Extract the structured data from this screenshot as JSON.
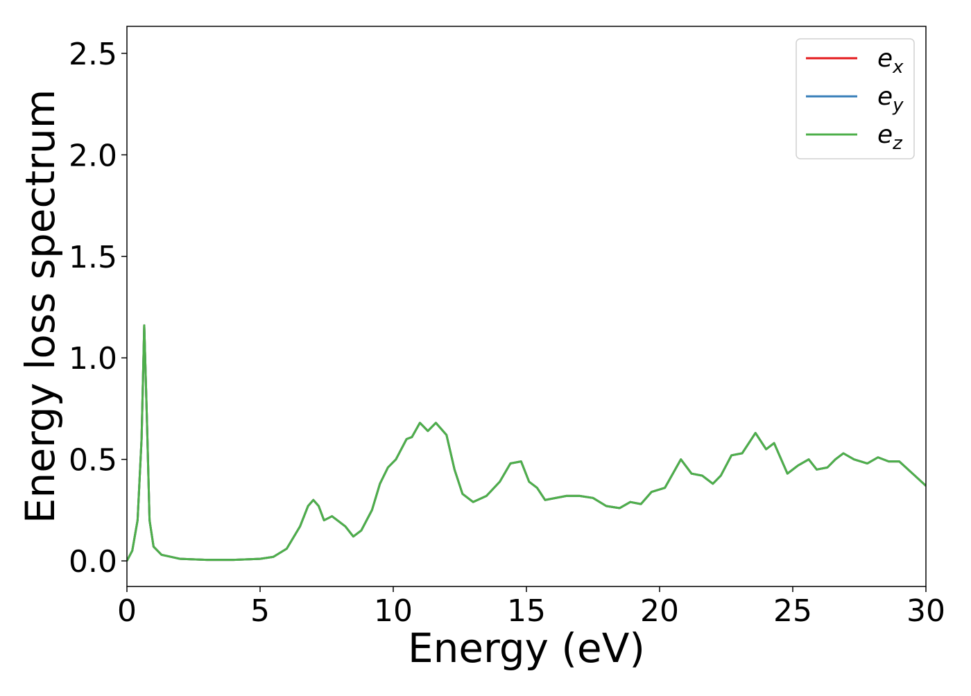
{
  "chart_data": {
    "type": "line",
    "xlabel": "Energy (eV)",
    "ylabel": "Energy loss spectrum",
    "xlim": [
      0,
      30
    ],
    "ylim": [
      -0.126,
      2.633
    ],
    "xticks": [
      0,
      5,
      10,
      15,
      20,
      25,
      30
    ],
    "yticks": [
      {
        "value": 0,
        "label": "0.0"
      },
      0.5,
      {
        "value": 1,
        "label": "1.0"
      },
      1.5,
      {
        "value": 2,
        "label": "2.0"
      },
      2.5
    ],
    "legend": "upper right",
    "x": [
      0,
      0.2,
      0.4,
      0.55,
      0.65,
      0.75,
      0.85,
      1.0,
      1.3,
      2,
      3,
      4,
      5,
      5.5,
      6,
      6.5,
      6.8,
      7.0,
      7.2,
      7.4,
      7.7,
      8.0,
      8.2,
      8.5,
      8.8,
      9.2,
      9.5,
      9.8,
      10.1,
      10.5,
      10.7,
      11.0,
      11.3,
      11.6,
      12.0,
      12.3,
      12.6,
      13.0,
      13.5,
      14.0,
      14.4,
      14.8,
      15.1,
      15.4,
      15.7,
      16.5,
      17.0,
      17.5,
      18.0,
      18.5,
      18.9,
      19.3,
      19.7,
      20.2,
      20.8,
      21.2,
      21.6,
      22.0,
      22.3,
      22.7,
      23.1,
      23.6,
      24.0,
      24.3,
      24.8,
      25.2,
      25.6,
      25.9,
      26.3,
      26.6,
      26.9,
      27.3,
      27.8,
      28.2,
      28.6,
      29.0,
      29.5,
      30
    ],
    "series": [
      {
        "name": "e_x",
        "color": "#e41a1c",
        "values": [
          0.0,
          0.05,
          0.2,
          0.6,
          1.16,
          0.7,
          0.2,
          0.07,
          0.03,
          0.01,
          0.005,
          0.005,
          0.01,
          0.02,
          0.06,
          0.17,
          0.27,
          0.3,
          0.27,
          0.2,
          0.22,
          0.19,
          0.17,
          0.12,
          0.15,
          0.25,
          0.38,
          0.46,
          0.5,
          0.6,
          0.61,
          0.68,
          0.64,
          0.68,
          0.62,
          0.45,
          0.33,
          0.29,
          0.32,
          0.39,
          0.48,
          0.49,
          0.39,
          0.36,
          0.3,
          0.32,
          0.32,
          0.31,
          0.27,
          0.26,
          0.29,
          0.28,
          0.34,
          0.36,
          0.5,
          0.43,
          0.42,
          0.38,
          0.42,
          0.52,
          0.53,
          0.63,
          0.55,
          0.58,
          0.43,
          0.47,
          0.5,
          0.45,
          0.46,
          0.5,
          0.53,
          0.5,
          0.48,
          0.51,
          0.49,
          0.49,
          0.43,
          0.37
        ]
      },
      {
        "name": "e_y",
        "color": "#377eb8",
        "values": [
          0.0,
          0.05,
          0.2,
          0.6,
          1.16,
          0.7,
          0.2,
          0.07,
          0.03,
          0.01,
          0.005,
          0.005,
          0.01,
          0.02,
          0.06,
          0.17,
          0.27,
          0.3,
          0.27,
          0.2,
          0.22,
          0.19,
          0.17,
          0.12,
          0.15,
          0.25,
          0.38,
          0.46,
          0.5,
          0.6,
          0.61,
          0.68,
          0.64,
          0.68,
          0.62,
          0.45,
          0.33,
          0.29,
          0.32,
          0.39,
          0.48,
          0.49,
          0.39,
          0.36,
          0.3,
          0.32,
          0.32,
          0.31,
          0.27,
          0.26,
          0.29,
          0.28,
          0.34,
          0.36,
          0.5,
          0.43,
          0.42,
          0.38,
          0.42,
          0.52,
          0.53,
          0.63,
          0.55,
          0.58,
          0.43,
          0.47,
          0.5,
          0.45,
          0.46,
          0.5,
          0.53,
          0.5,
          0.48,
          0.51,
          0.49,
          0.49,
          0.43,
          0.37
        ]
      },
      {
        "name": "e_z",
        "color": "#4daf4a",
        "values": [
          0.0,
          0.05,
          0.2,
          0.6,
          1.16,
          0.7,
          0.2,
          0.07,
          0.03,
          0.01,
          0.005,
          0.005,
          0.01,
          0.02,
          0.06,
          0.17,
          0.27,
          0.3,
          0.27,
          0.2,
          0.22,
          0.19,
          0.17,
          0.12,
          0.15,
          0.25,
          0.38,
          0.46,
          0.5,
          0.6,
          0.61,
          0.68,
          0.64,
          0.68,
          0.62,
          0.45,
          0.33,
          0.29,
          0.32,
          0.39,
          0.48,
          0.49,
          0.39,
          0.36,
          0.3,
          0.32,
          0.32,
          0.31,
          0.27,
          0.26,
          0.29,
          0.28,
          0.34,
          0.36,
          0.5,
          0.43,
          0.42,
          0.38,
          0.42,
          0.52,
          0.53,
          0.63,
          0.55,
          0.58,
          0.43,
          0.47,
          0.5,
          0.45,
          0.46,
          0.5,
          0.53,
          0.5,
          0.48,
          0.51,
          0.49,
          0.49,
          0.43,
          0.37
        ]
      }
    ]
  }
}
